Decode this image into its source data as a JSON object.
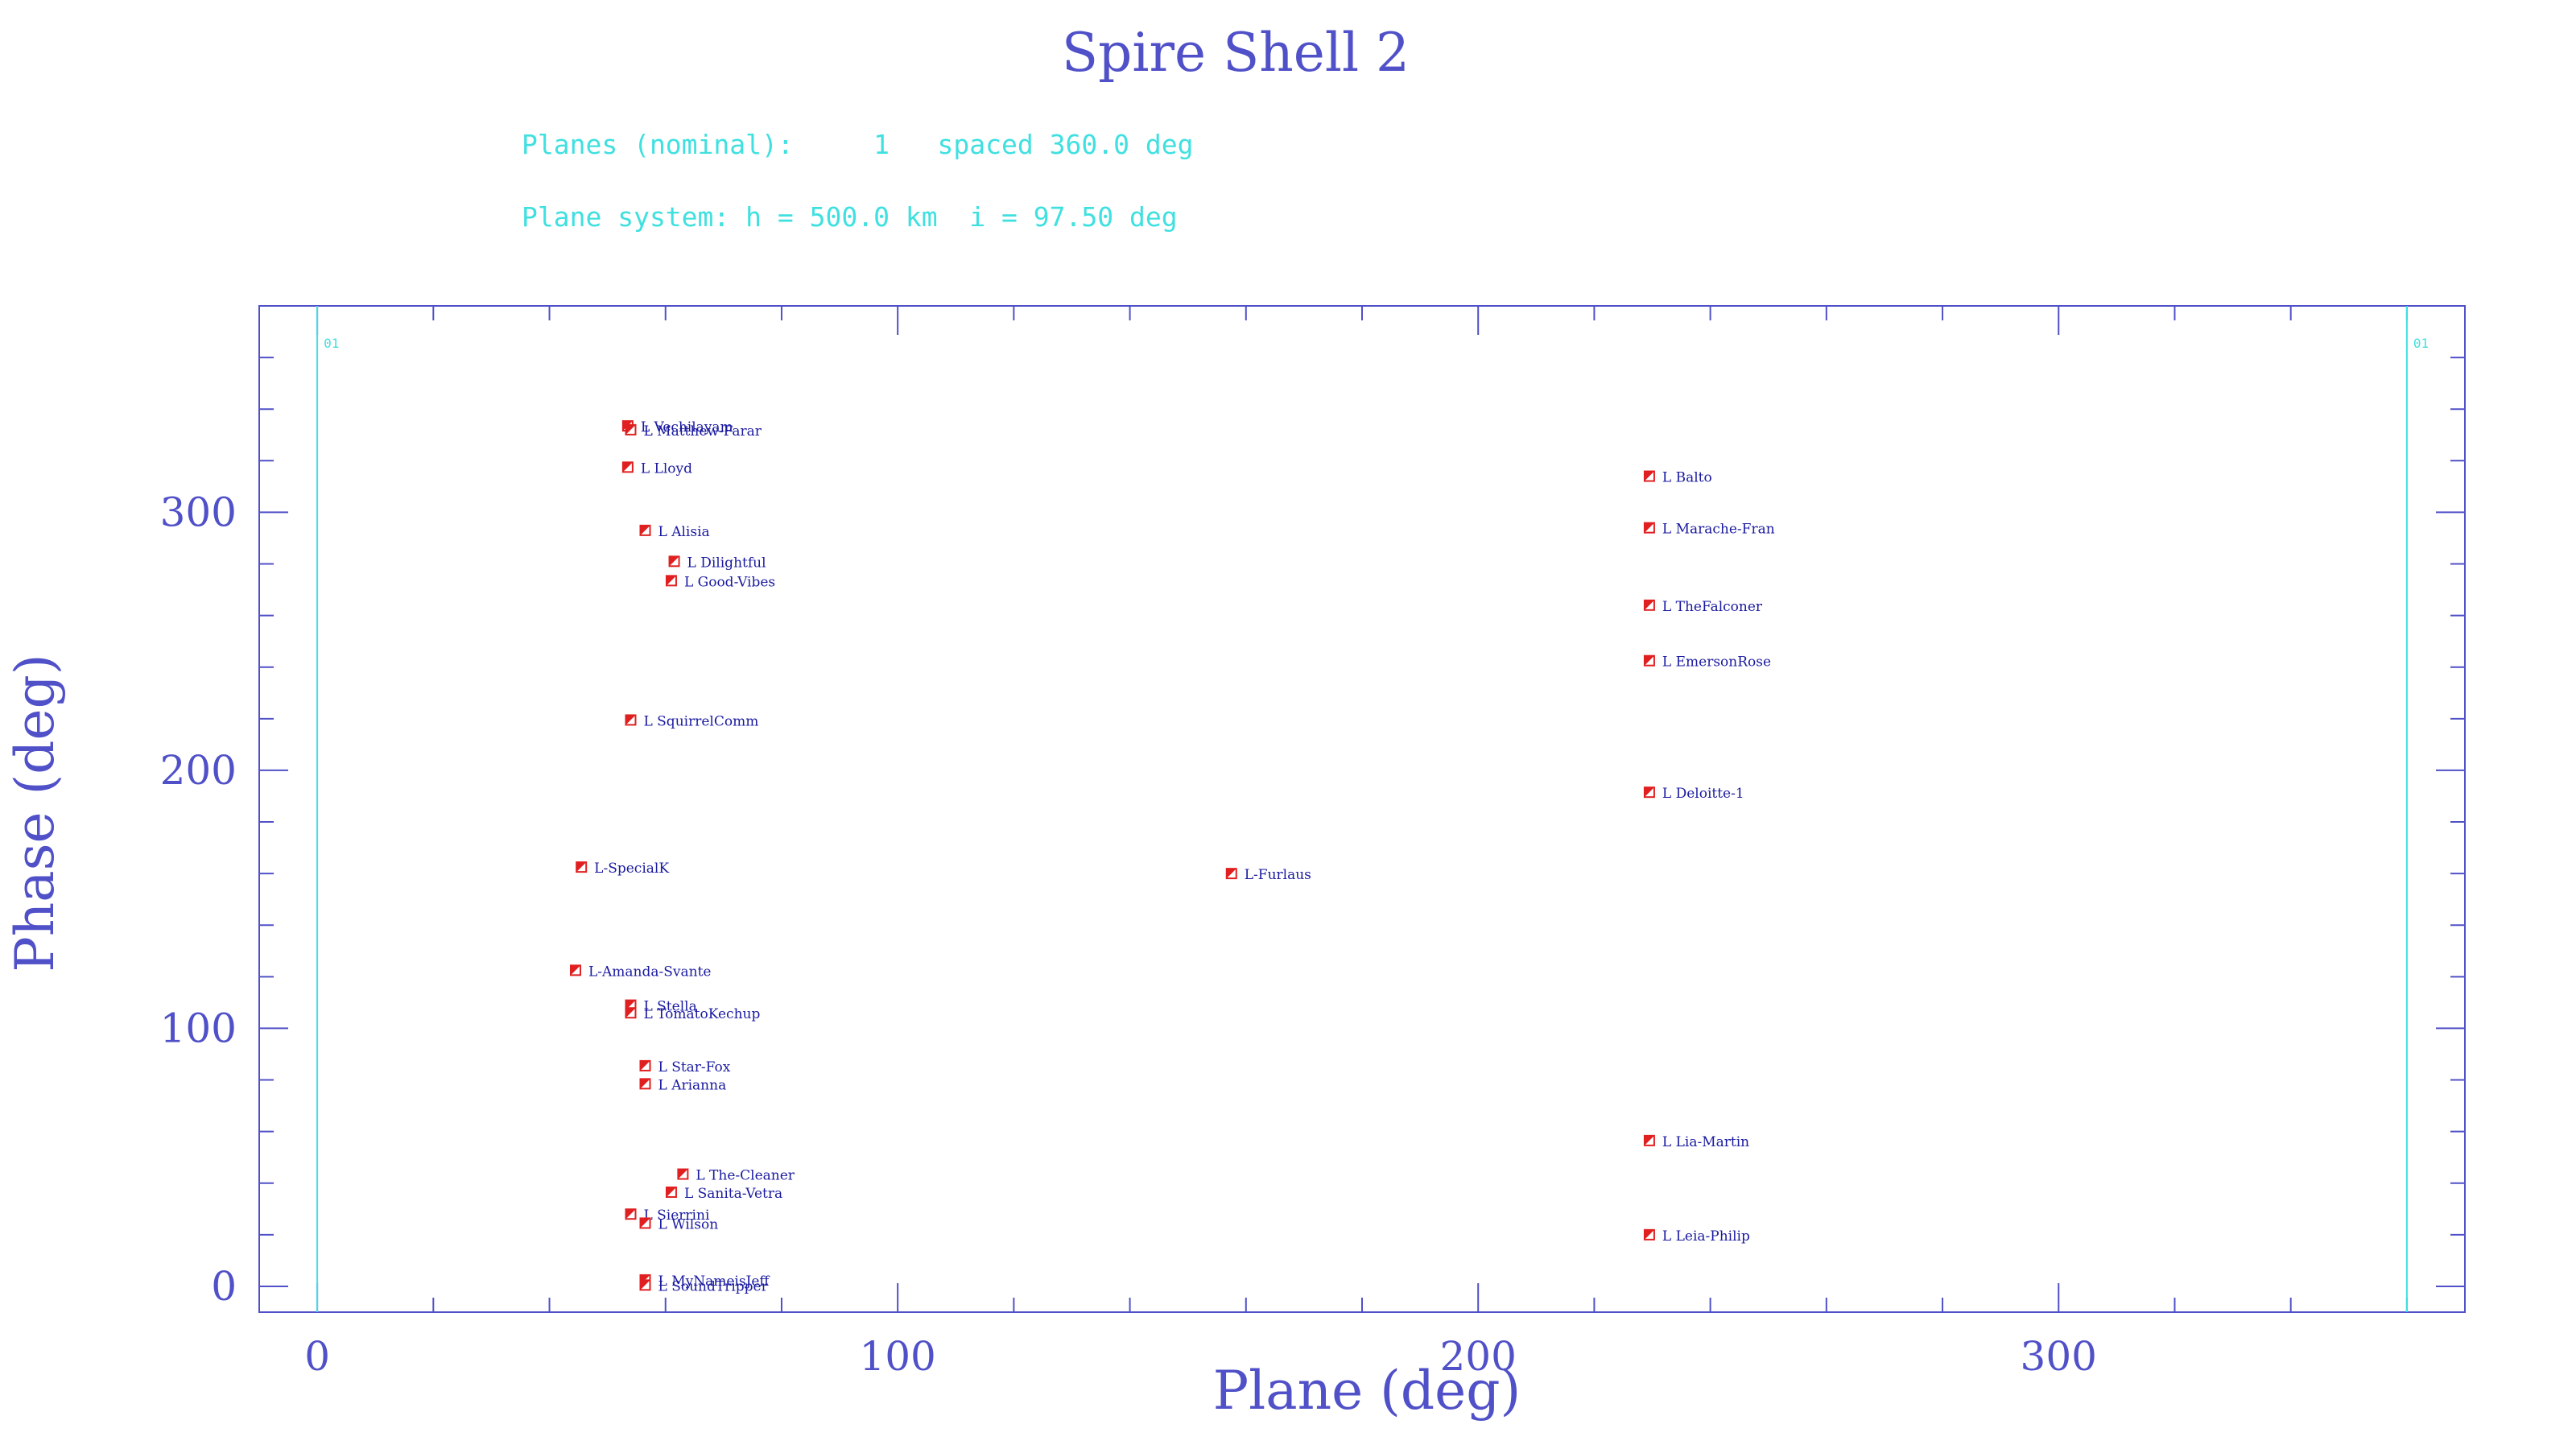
{
  "chart_data": {
    "type": "scatter",
    "title": "Spire Shell 2",
    "info_lines": [
      "Planes (nominal):     1   spaced 360.0 deg",
      "Plane system: h = 500.0 km  i = 97.50 deg"
    ],
    "xlabel": "Plane (deg)",
    "ylabel": "Phase (deg)",
    "xlim": [
      -10,
      370
    ],
    "ylim": [
      -10,
      380
    ],
    "x_ticks": [
      0,
      100,
      200,
      300
    ],
    "y_ticks": [
      0,
      100,
      200,
      300
    ],
    "plane_lines": [
      {
        "x": 0,
        "label": "01"
      },
      {
        "x": 360,
        "label": "01"
      }
    ],
    "colors": {
      "axis": "#5050c8",
      "marker": "#e02020",
      "point_label": "#1a1aa0",
      "plane_line": "#40e0e0"
    },
    "points": [
      {
        "label": "L Vechilayam",
        "x": 53.5,
        "y": 333.5
      },
      {
        "label": "L Matthew-Farar",
        "x": 54.0,
        "y": 332.0
      },
      {
        "label": "L Lloyd",
        "x": 53.5,
        "y": 317.5
      },
      {
        "label": "L Alisia",
        "x": 56.5,
        "y": 293.0
      },
      {
        "label": "L Dilightful",
        "x": 61.5,
        "y": 281.0
      },
      {
        "label": "L Good-Vibes",
        "x": 61.0,
        "y": 273.5
      },
      {
        "label": "L SquirrelComm",
        "x": 54.0,
        "y": 219.5
      },
      {
        "label": "L-SpecialK",
        "x": 45.5,
        "y": 162.5
      },
      {
        "label": "L-Amanda-Svante",
        "x": 44.5,
        "y": 122.5
      },
      {
        "label": "L Stella",
        "x": 54.0,
        "y": 109.0
      },
      {
        "label": "L TomatoKechup",
        "x": 54.0,
        "y": 106.0
      },
      {
        "label": "L Star-Fox",
        "x": 56.5,
        "y": 85.5
      },
      {
        "label": "L Arianna",
        "x": 56.5,
        "y": 78.5
      },
      {
        "label": "L The-Cleaner",
        "x": 63.0,
        "y": 43.5
      },
      {
        "label": "L Sanita-Vetra",
        "x": 61.0,
        "y": 36.5
      },
      {
        "label": "L Sierrini",
        "x": 54.0,
        "y": 28.0
      },
      {
        "label": "L Wilson",
        "x": 56.5,
        "y": 24.5
      },
      {
        "label": "L MyNameisJeff",
        "x": 56.5,
        "y": 2.5
      },
      {
        "label": "L SoundTripper",
        "x": 56.5,
        "y": 0.5
      },
      {
        "label": "L-Furlaus",
        "x": 157.5,
        "y": 160.0
      },
      {
        "label": "L Balto",
        "x": 229.5,
        "y": 314.0
      },
      {
        "label": "L Marache-Fran",
        "x": 229.5,
        "y": 294.0
      },
      {
        "label": "L TheFalconer",
        "x": 229.5,
        "y": 264.0
      },
      {
        "label": "L EmersonRose",
        "x": 229.5,
        "y": 242.5
      },
      {
        "label": "L Deloitte-1",
        "x": 229.5,
        "y": 191.5
      },
      {
        "label": "L Lia-Martin",
        "x": 229.5,
        "y": 56.5
      },
      {
        "label": "L Leia-Philip",
        "x": 229.5,
        "y": 20.0
      }
    ]
  }
}
